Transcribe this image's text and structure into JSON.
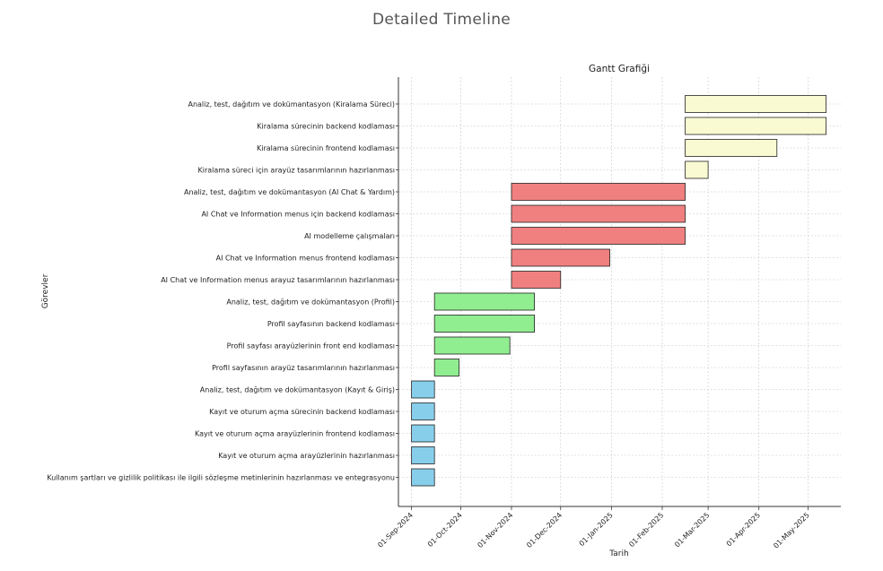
{
  "page": {
    "title": "Detailed Timeline"
  },
  "chart_data": {
    "type": "gantt",
    "title": "Gantt Grafiği",
    "xlabel": "Tarih",
    "ylabel": "Görevler",
    "xlim": [
      "2024-08-24",
      "2025-05-21"
    ],
    "x_ticks": [
      "01-Sep-2024",
      "01-Oct-2024",
      "01-Nov-2024",
      "01-Dec-2024",
      "01-Jan-2025",
      "01-Feb-2025",
      "01-Mar-2025",
      "01-Apr-2025",
      "01-May-2025"
    ],
    "x_tick_dates": [
      "2024-09-01",
      "2024-10-01",
      "2024-11-01",
      "2024-12-01",
      "2025-01-01",
      "2025-02-01",
      "2025-03-01",
      "2025-04-01",
      "2025-05-01"
    ],
    "grid": true,
    "tasks": [
      {
        "name": "Analiz, test, dağıtım ve dokümantasyon (Kiralama Süreci)",
        "start": "2025-02-15",
        "end": "2025-05-12",
        "color": "#fafad2"
      },
      {
        "name": "Kiralama sürecinin backend kodlaması",
        "start": "2025-02-15",
        "end": "2025-05-12",
        "color": "#fafad2"
      },
      {
        "name": "Kiralama sürecinin frontend kodlaması",
        "start": "2025-02-15",
        "end": "2025-04-12",
        "color": "#fafad2"
      },
      {
        "name": "Kiralama süreci için arayüz tasarımlarının hazırlanması",
        "start": "2025-02-15",
        "end": "2025-03-01",
        "color": "#fafad2"
      },
      {
        "name": "Analiz, test, dağıtım ve dokümantasyon (AI Chat & Yardım)",
        "start": "2024-11-01",
        "end": "2025-02-15",
        "color": "#f08080"
      },
      {
        "name": "AI Chat ve Information menus için backend kodlaması",
        "start": "2024-11-01",
        "end": "2025-02-15",
        "color": "#f08080"
      },
      {
        "name": "AI modelleme çalışmaları",
        "start": "2024-11-01",
        "end": "2025-02-15",
        "color": "#f08080"
      },
      {
        "name": "AI Chat ve Information menus frontend kodlaması",
        "start": "2024-11-01",
        "end": "2024-12-31",
        "color": "#f08080"
      },
      {
        "name": "AI Chat ve Information menus arayuz tasarımlarının hazırlanması",
        "start": "2024-11-01",
        "end": "2024-12-01",
        "color": "#f08080"
      },
      {
        "name": "Analiz, test, dağıtım ve dokümantasyon (Profil)",
        "start": "2024-09-15",
        "end": "2024-11-15",
        "color": "#90ee90"
      },
      {
        "name": "Profil sayfasının backend kodlaması",
        "start": "2024-09-15",
        "end": "2024-11-15",
        "color": "#90ee90"
      },
      {
        "name": "Profil sayfası arayüzlerinin front end kodlaması",
        "start": "2024-09-15",
        "end": "2024-10-31",
        "color": "#90ee90"
      },
      {
        "name": "Profil sayfasının arayüz tasarımlarının hazırlanması",
        "start": "2024-09-15",
        "end": "2024-09-30",
        "color": "#90ee90"
      },
      {
        "name": "Analiz, test, dağıtım ve dokümantasyon (Kayıt & Giriş)",
        "start": "2024-09-01",
        "end": "2024-09-15",
        "color": "#87ceeb"
      },
      {
        "name": "Kayıt ve oturum açma sürecinin backend kodlaması",
        "start": "2024-09-01",
        "end": "2024-09-15",
        "color": "#87ceeb"
      },
      {
        "name": "Kayıt ve oturum açma arayüzlerinin frontend kodlaması",
        "start": "2024-09-01",
        "end": "2024-09-15",
        "color": "#87ceeb"
      },
      {
        "name": "Kayıt ve oturum açma arayüzlerinin hazırlanması",
        "start": "2024-09-01",
        "end": "2024-09-15",
        "color": "#87ceeb"
      },
      {
        "name": "Kullanım şartları ve gizlilik politikası ile ilgili sözleşme metinlerinin hazırlanması ve entegrasyonu",
        "start": "2024-09-01",
        "end": "2024-09-15",
        "color": "#87ceeb"
      }
    ]
  }
}
